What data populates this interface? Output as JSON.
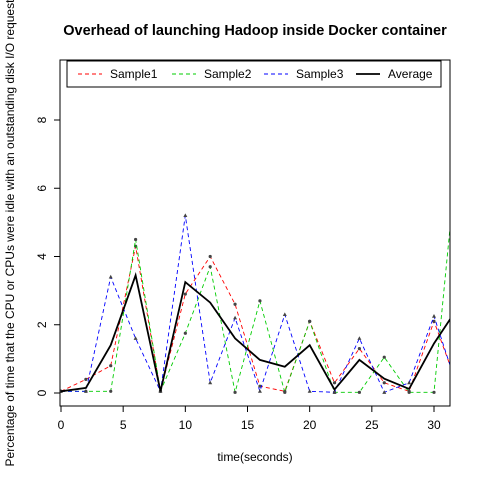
{
  "chart_data": {
    "type": "line",
    "title": "Overhead of launching Hadoop inside Docker container",
    "xlabel": "time(seconds)",
    "ylabel": "Percentage of time that the CPU or CPUs were idle with an outstanding disk I/O request",
    "xlim": [
      0,
      31
    ],
    "ylim": [
      0,
      10
    ],
    "x_ticks": [
      0,
      5,
      10,
      15,
      20,
      25,
      30
    ],
    "y_ticks": [
      0,
      2,
      4,
      6,
      8
    ],
    "legend_position": "top",
    "x": [
      0,
      2,
      4,
      6,
      8,
      10,
      12,
      14,
      16,
      18,
      20,
      22,
      24,
      26,
      28,
      30,
      32
    ],
    "series": [
      {
        "name": "Sample1",
        "color": "#ff0000",
        "dash": "dashed",
        "marker": "circle",
        "values": [
          0.05,
          0.4,
          0.8,
          4.3,
          0.05,
          2.9,
          4.0,
          2.6,
          0.2,
          0.05,
          2.1,
          0.3,
          1.3,
          0.3,
          0.05,
          2.1,
          0.1
        ]
      },
      {
        "name": "Sample2",
        "color": "#00cc00",
        "dash": "dashed",
        "marker": "circle",
        "values": [
          0.05,
          0.05,
          0.05,
          4.5,
          0.05,
          1.75,
          3.7,
          0.02,
          2.7,
          0.02,
          2.1,
          0.02,
          0.02,
          1.05,
          0.02,
          0.02,
          7.5
        ]
      },
      {
        "name": "Sample3",
        "color": "#0000ff",
        "dash": "dashed",
        "marker": "triangle",
        "values": [
          0.05,
          0.05,
          3.4,
          1.6,
          0.05,
          5.2,
          0.3,
          2.2,
          0.05,
          2.3,
          0.05,
          0.02,
          1.6,
          0.02,
          0.3,
          2.25,
          0.02
        ]
      },
      {
        "name": "Average",
        "color": "#000000",
        "dash": "solid",
        "marker": "none",
        "values": [
          0.05,
          0.15,
          1.4,
          3.45,
          0.05,
          3.25,
          2.65,
          1.6,
          0.97,
          0.77,
          1.4,
          0.1,
          0.97,
          0.42,
          0.12,
          1.45,
          2.55
        ]
      }
    ]
  }
}
